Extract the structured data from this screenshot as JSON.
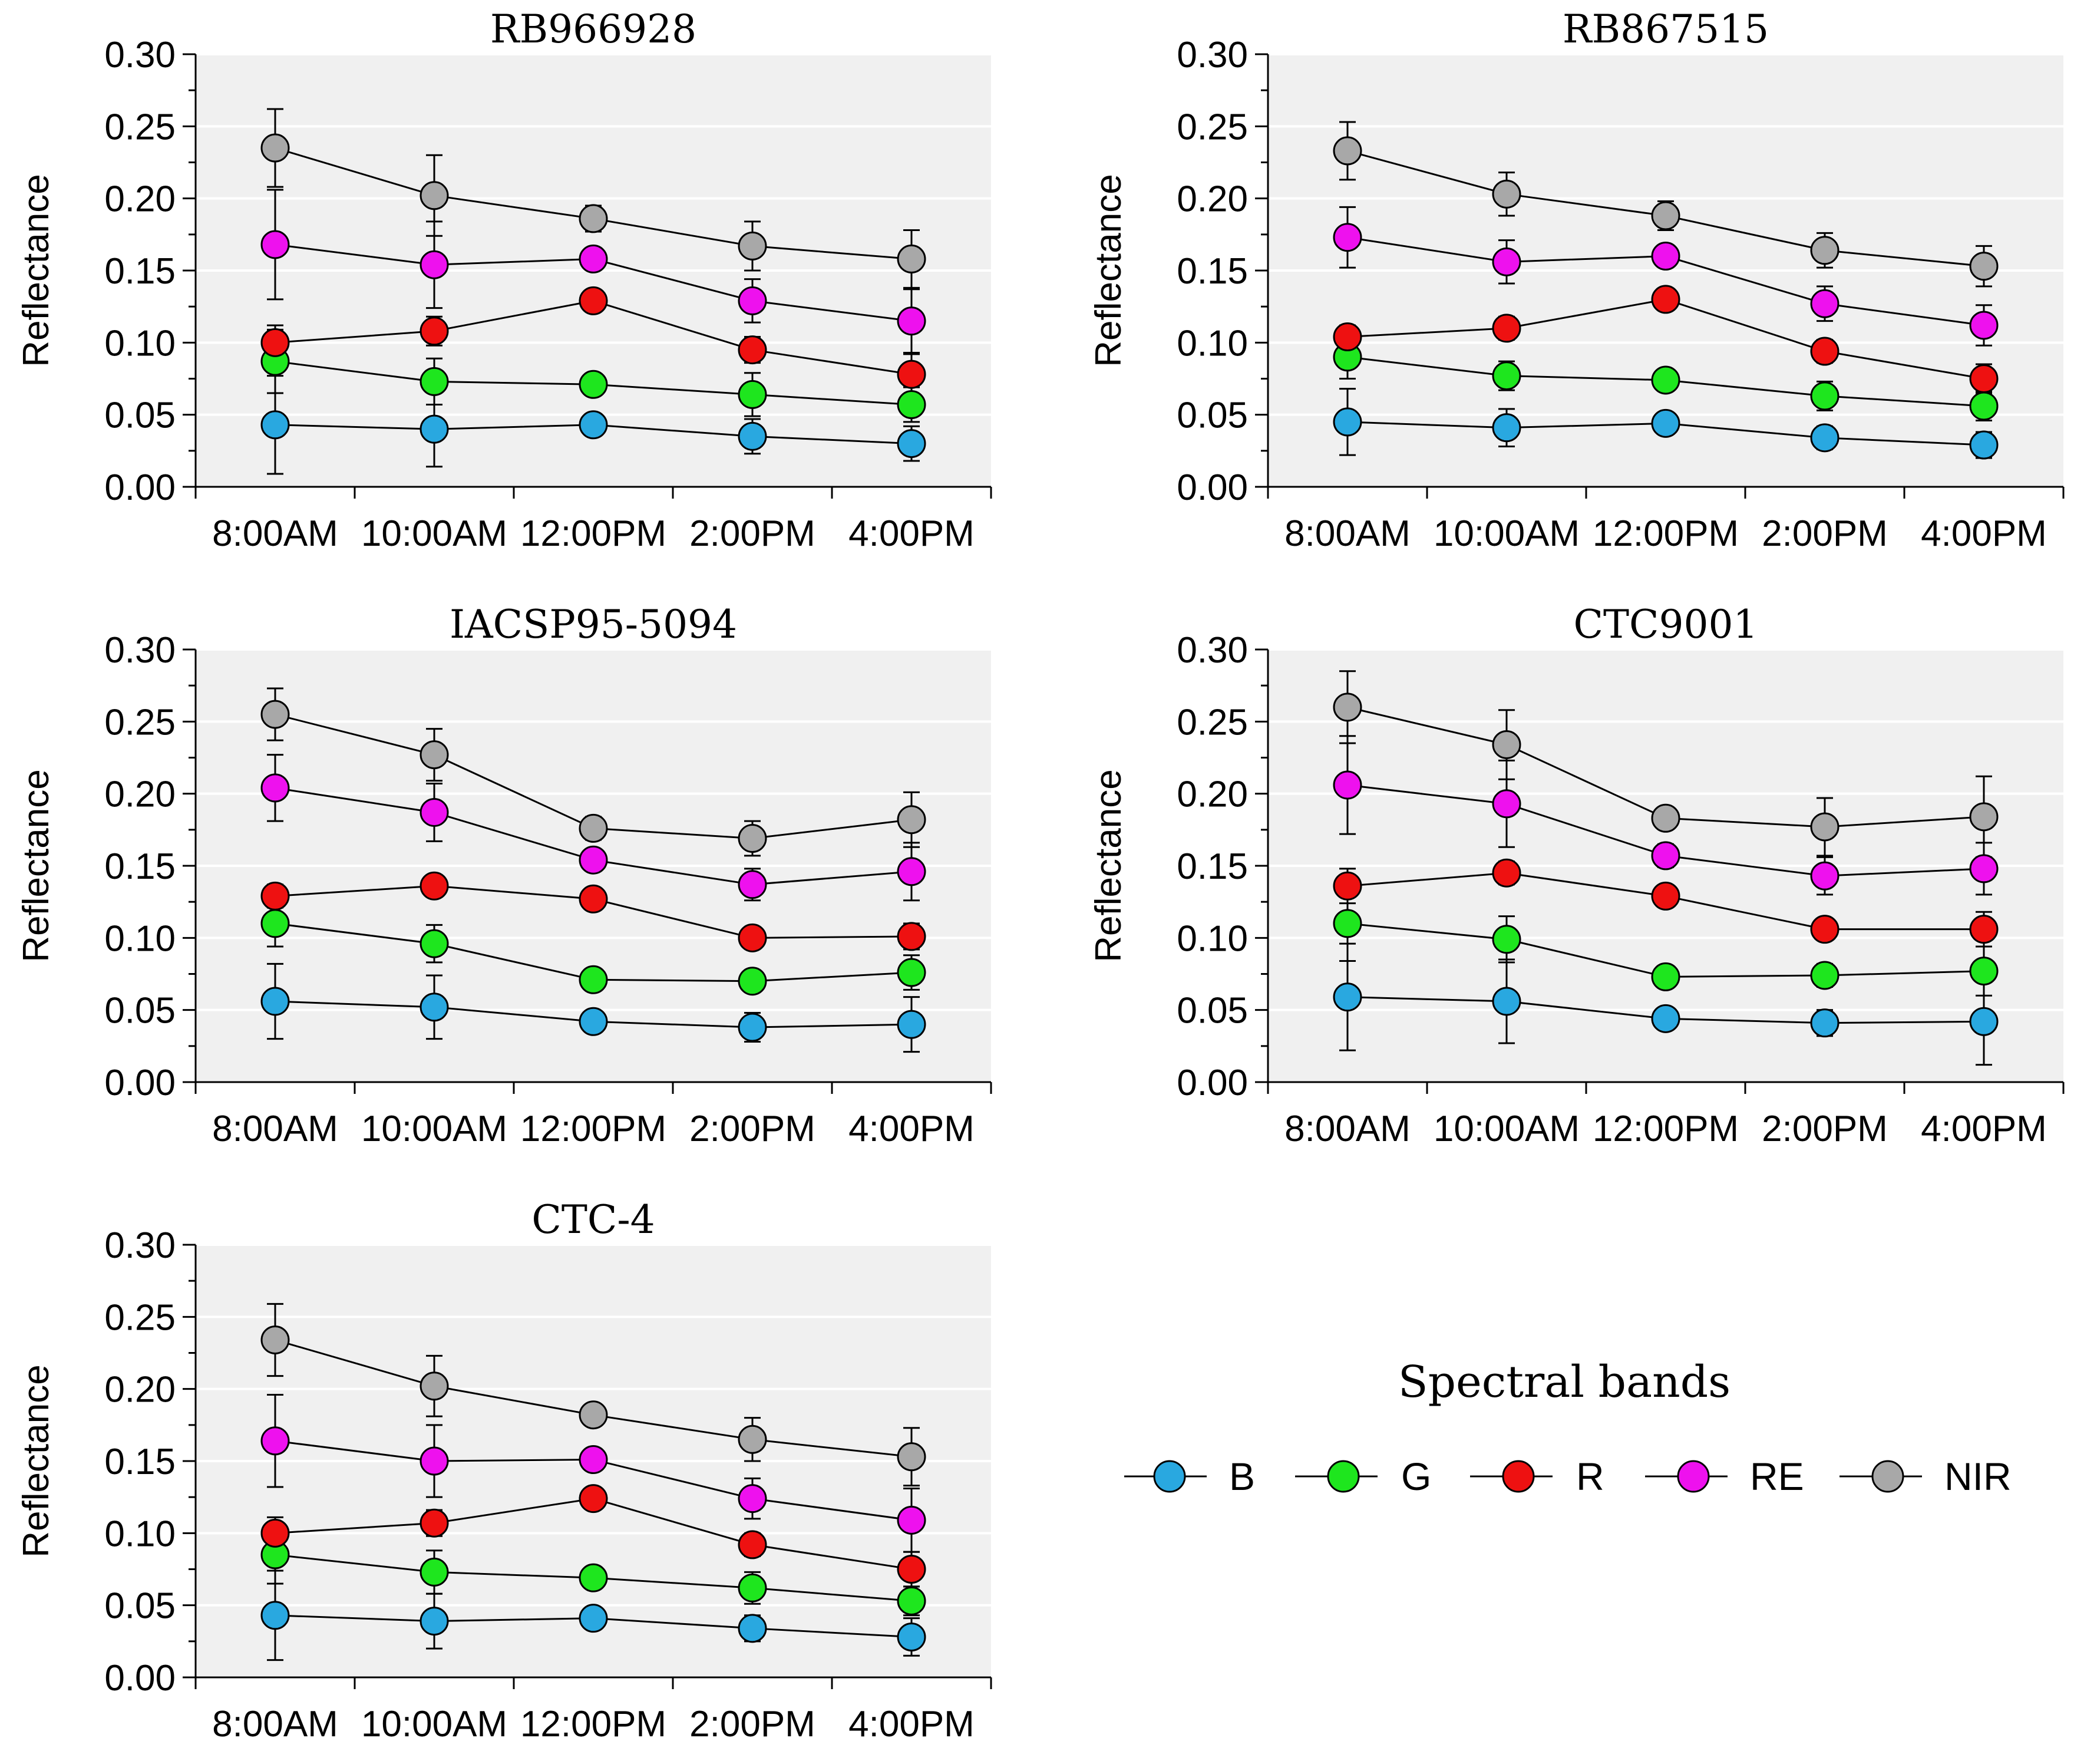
{
  "chart_data": {
    "type": "line",
    "categories": [
      "8:00AM",
      "10:00AM",
      "12:00PM",
      "2:00PM",
      "4:00PM"
    ],
    "ylabel": "Reflectance",
    "ylim": [
      0,
      0.3
    ],
    "yticks": [
      "0.00",
      "0.05",
      "0.10",
      "0.15",
      "0.20",
      "0.25",
      "0.30"
    ],
    "legend_title": "Spectral bands",
    "bands": [
      {
        "name": "B",
        "color": "#29a8e0"
      },
      {
        "name": "G",
        "color": "#1ee61e"
      },
      {
        "name": "R",
        "color": "#ee1111"
      },
      {
        "name": "RE",
        "color": "#ee11ee"
      },
      {
        "name": "NIR",
        "color": "#a8a8a8"
      }
    ],
    "panels": [
      {
        "title": "RB966928",
        "series": [
          {
            "name": "B",
            "values": [
              0.043,
              0.04,
              0.043,
              0.035,
              0.03
            ],
            "errors": [
              0.034,
              0.026,
              0.005,
              0.012,
              0.012
            ]
          },
          {
            "name": "G",
            "values": [
              0.087,
              0.073,
              0.071,
              0.064,
              0.057
            ],
            "errors": [
              0.022,
              0.016,
              0.004,
              0.015,
              0.012
            ]
          },
          {
            "name": "R",
            "values": [
              0.1,
              0.108,
              0.129,
              0.095,
              0.078
            ],
            "errors": [
              0.012,
              0.01,
              0.005,
              0.009,
              0.014
            ]
          },
          {
            "name": "RE",
            "values": [
              0.168,
              0.154,
              0.158,
              0.129,
              0.115
            ],
            "errors": [
              0.038,
              0.03,
              0.006,
              0.015,
              0.022
            ]
          },
          {
            "name": "NIR",
            "values": [
              0.235,
              0.202,
              0.186,
              0.167,
              0.158
            ],
            "errors": [
              0.027,
              0.028,
              0.009,
              0.017,
              0.02
            ]
          }
        ]
      },
      {
        "title": "RB867515",
        "series": [
          {
            "name": "B",
            "values": [
              0.045,
              0.041,
              0.044,
              0.034,
              0.029
            ],
            "errors": [
              0.023,
              0.013,
              0.006,
              0.008,
              0.009
            ]
          },
          {
            "name": "G",
            "values": [
              0.09,
              0.077,
              0.074,
              0.063,
              0.056
            ],
            "errors": [
              0.015,
              0.01,
              0.005,
              0.01,
              0.01
            ]
          },
          {
            "name": "R",
            "values": [
              0.104,
              0.11,
              0.13,
              0.094,
              0.075
            ],
            "errors": [
              0.008,
              0.008,
              0.005,
              0.008,
              0.01
            ]
          },
          {
            "name": "RE",
            "values": [
              0.173,
              0.156,
              0.16,
              0.127,
              0.112
            ],
            "errors": [
              0.021,
              0.015,
              0.006,
              0.012,
              0.014
            ]
          },
          {
            "name": "NIR",
            "values": [
              0.233,
              0.203,
              0.188,
              0.164,
              0.153
            ],
            "errors": [
              0.02,
              0.015,
              0.01,
              0.012,
              0.014
            ]
          }
        ]
      },
      {
        "title": "IACSP95-5094",
        "series": [
          {
            "name": "B",
            "values": [
              0.056,
              0.052,
              0.042,
              0.038,
              0.04
            ],
            "errors": [
              0.026,
              0.022,
              0.004,
              0.01,
              0.019
            ]
          },
          {
            "name": "G",
            "values": [
              0.11,
              0.096,
              0.071,
              0.07,
              0.076
            ],
            "errors": [
              0.016,
              0.013,
              0.005,
              0.006,
              0.012
            ]
          },
          {
            "name": "R",
            "values": [
              0.129,
              0.136,
              0.127,
              0.1,
              0.101
            ],
            "errors": [
              0.008,
              0.007,
              0.006,
              0.006,
              0.009
            ]
          },
          {
            "name": "RE",
            "values": [
              0.204,
              0.187,
              0.154,
              0.137,
              0.146
            ],
            "errors": [
              0.023,
              0.02,
              0.007,
              0.011,
              0.02
            ]
          },
          {
            "name": "NIR",
            "values": [
              0.255,
              0.227,
              0.176,
              0.169,
              0.182
            ],
            "errors": [
              0.018,
              0.018,
              0.008,
              0.012,
              0.019
            ]
          }
        ]
      },
      {
        "title": "CTC9001",
        "series": [
          {
            "name": "B",
            "values": [
              0.059,
              0.056,
              0.044,
              0.041,
              0.042
            ],
            "errors": [
              0.037,
              0.029,
              0.005,
              0.009,
              0.03
            ]
          },
          {
            "name": "G",
            "values": [
              0.11,
              0.099,
              0.073,
              0.074,
              0.077
            ],
            "errors": [
              0.026,
              0.016,
              0.005,
              0.008,
              0.017
            ]
          },
          {
            "name": "R",
            "values": [
              0.136,
              0.145,
              0.129,
              0.106,
              0.106
            ],
            "errors": [
              0.012,
              0.008,
              0.005,
              0.005,
              0.012
            ]
          },
          {
            "name": "RE",
            "values": [
              0.206,
              0.193,
              0.157,
              0.143,
              0.148
            ],
            "errors": [
              0.034,
              0.03,
              0.008,
              0.013,
              0.018
            ]
          },
          {
            "name": "NIR",
            "values": [
              0.26,
              0.234,
              0.183,
              0.177,
              0.184
            ],
            "errors": [
              0.025,
              0.024,
              0.006,
              0.02,
              0.028
            ]
          }
        ]
      },
      {
        "title": "CTC-4",
        "series": [
          {
            "name": "B",
            "values": [
              0.043,
              0.039,
              0.041,
              0.034,
              0.028
            ],
            "errors": [
              0.031,
              0.019,
              0.004,
              0.009,
              0.013
            ]
          },
          {
            "name": "G",
            "values": [
              0.085,
              0.073,
              0.069,
              0.062,
              0.053
            ],
            "errors": [
              0.02,
              0.015,
              0.004,
              0.011,
              0.01
            ]
          },
          {
            "name": "R",
            "values": [
              0.1,
              0.107,
              0.124,
              0.092,
              0.075
            ],
            "errors": [
              0.011,
              0.009,
              0.005,
              0.008,
              0.012
            ]
          },
          {
            "name": "RE",
            "values": [
              0.164,
              0.15,
              0.151,
              0.124,
              0.109
            ],
            "errors": [
              0.032,
              0.025,
              0.006,
              0.014,
              0.022
            ]
          },
          {
            "name": "NIR",
            "values": [
              0.234,
              0.202,
              0.182,
              0.165,
              0.153
            ],
            "errors": [
              0.025,
              0.021,
              0.007,
              0.015,
              0.02
            ]
          }
        ]
      }
    ]
  }
}
